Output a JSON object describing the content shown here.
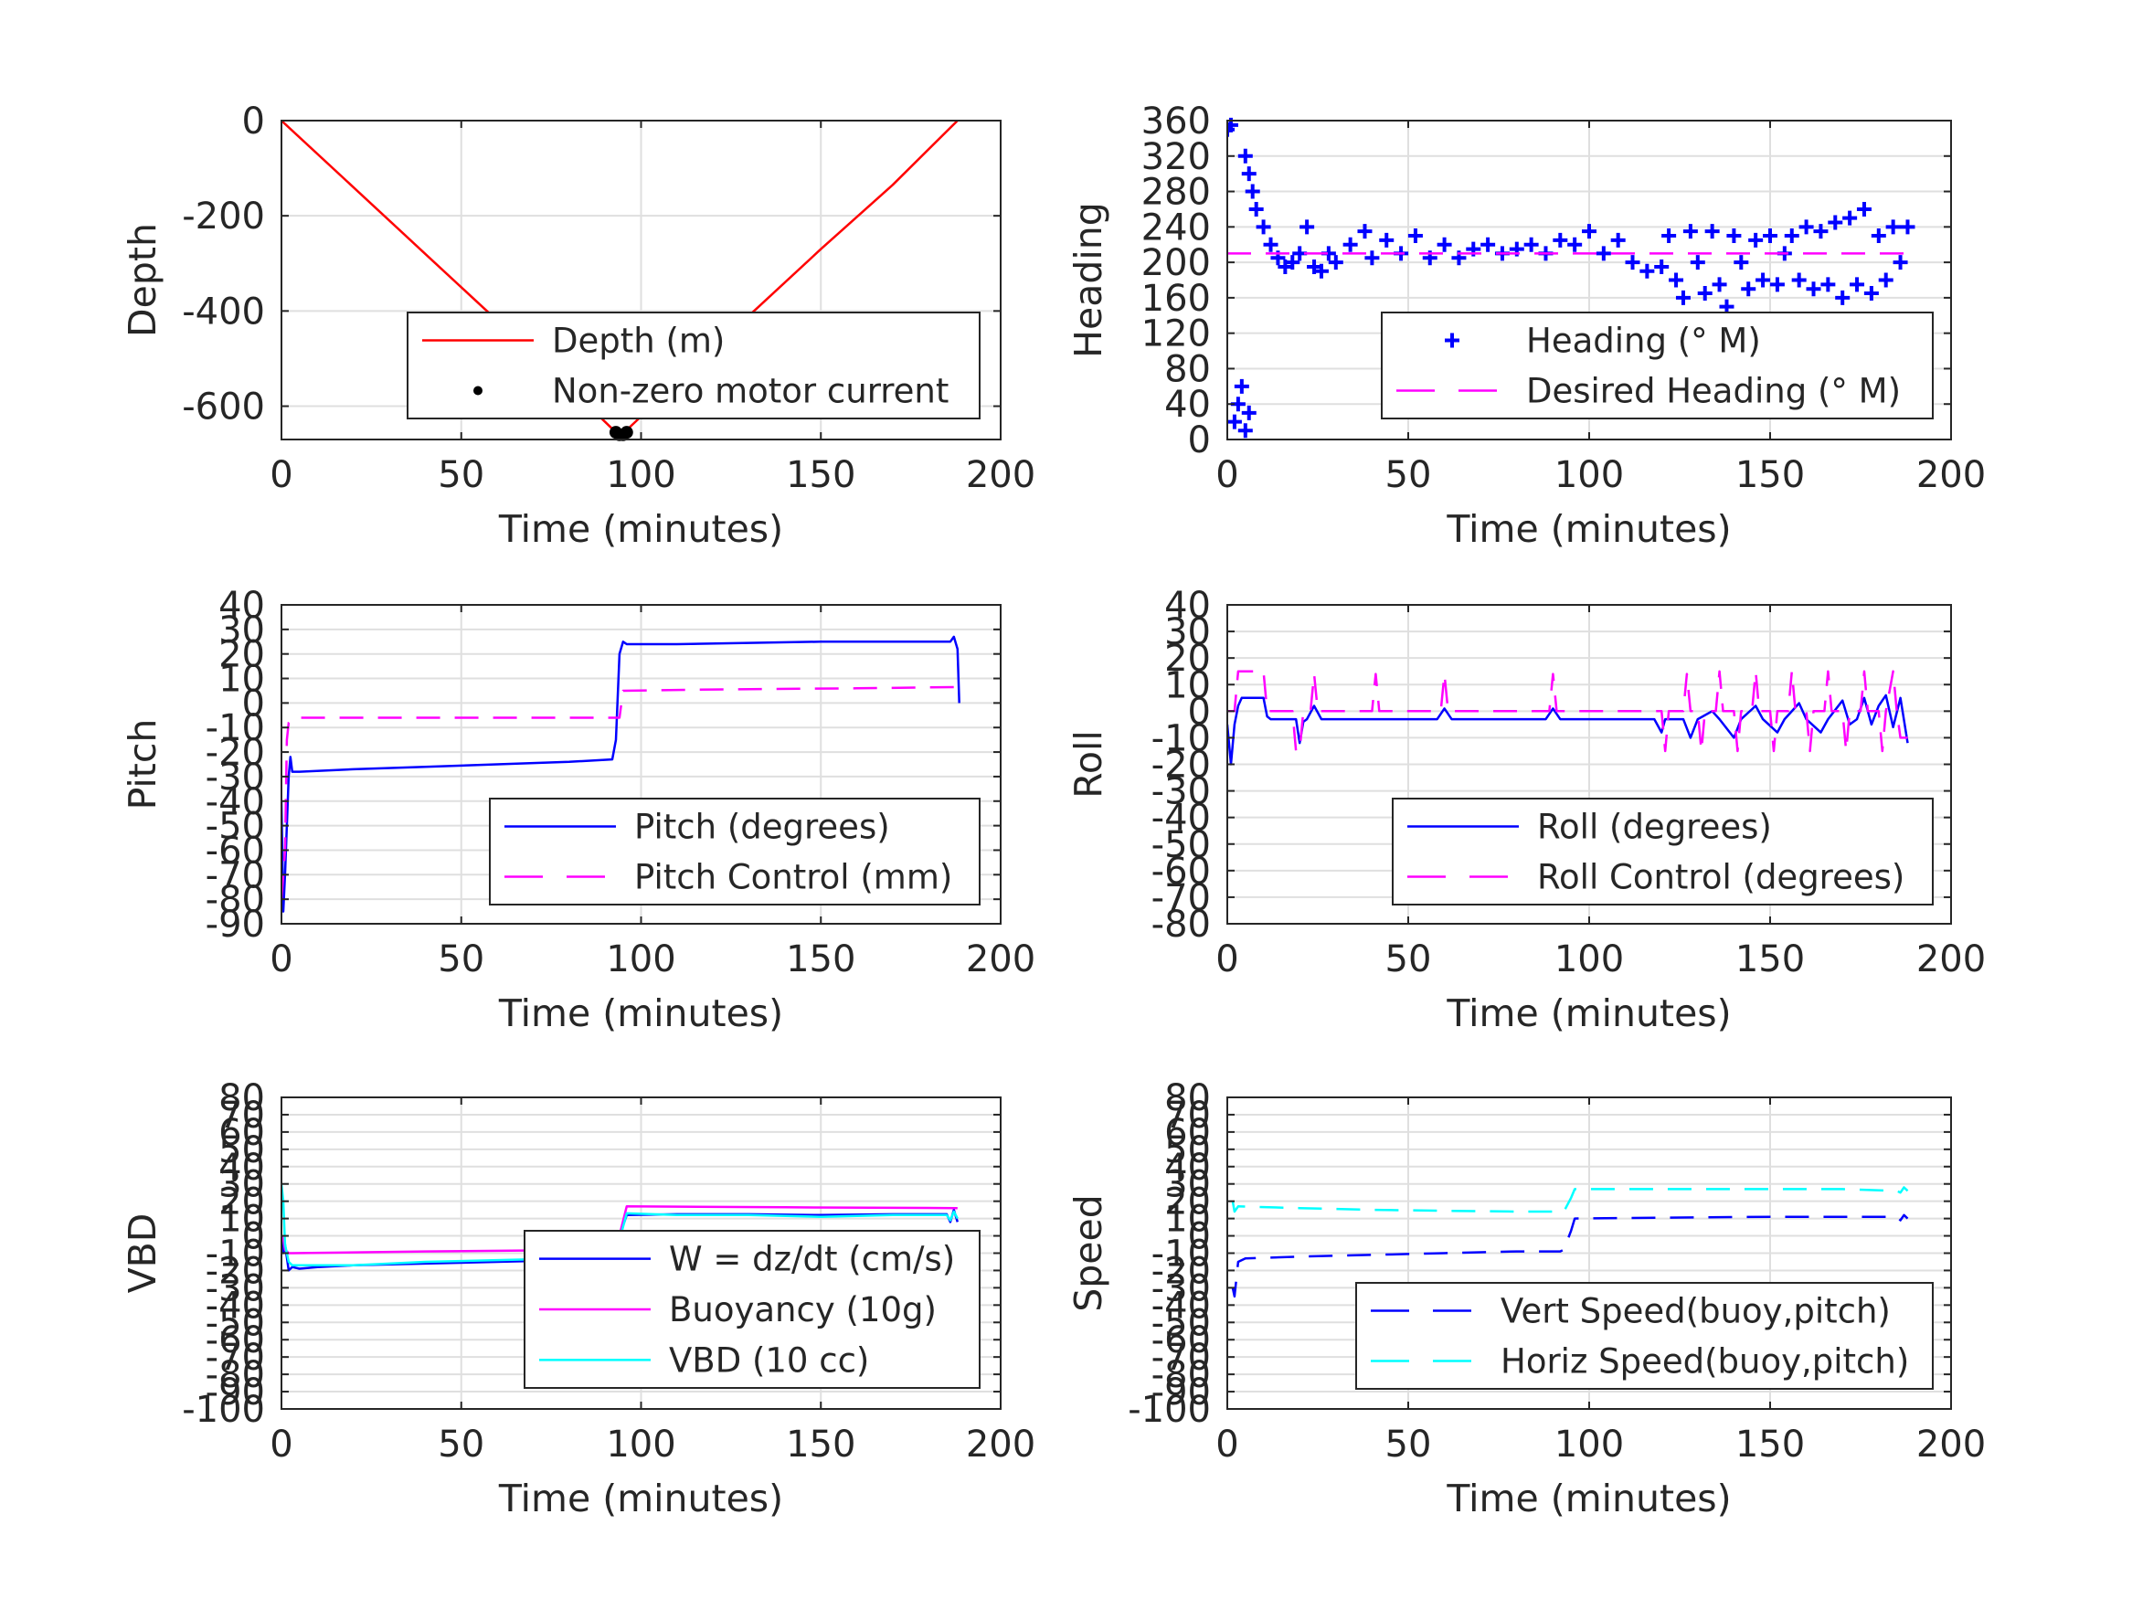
{
  "chart_data": [
    {
      "id": "depth",
      "type": "line",
      "xlabel": "Time (minutes)",
      "ylabel": "Depth",
      "xlim": [
        0,
        200
      ],
      "ylim": [
        -670,
        0
      ],
      "xticks": [
        0,
        50,
        100,
        150,
        200
      ],
      "yticks": [
        -600,
        -400,
        -200,
        0
      ],
      "xtick_labels": [
        "0",
        "50",
        "100",
        "150",
        "200"
      ],
      "ytick_labels": [
        "-600",
        "-400",
        "-200",
        "0"
      ],
      "grid": true,
      "legend": "bottom-right",
      "series": [
        {
          "name": "Depth (m)",
          "color": "#ff0000",
          "style": "solid",
          "x": [
            0,
            20,
            40,
            60,
            80,
            93,
            96,
            110,
            130,
            150,
            170,
            188
          ],
          "y": [
            0,
            -140,
            -280,
            -420,
            -560,
            -655,
            -650,
            -550,
            -410,
            -270,
            -135,
            0
          ]
        },
        {
          "name": "Non-zero motor current",
          "color": "#000000",
          "style": "dot",
          "x": [
            93,
            94,
            95,
            96
          ],
          "y": [
            -655,
            -660,
            -660,
            -655
          ]
        }
      ]
    },
    {
      "id": "heading",
      "type": "scatter",
      "xlabel": "Time (minutes)",
      "ylabel": "Heading",
      "xlim": [
        0,
        200
      ],
      "ylim": [
        0,
        360
      ],
      "xticks": [
        0,
        50,
        100,
        150,
        200
      ],
      "yticks": [
        0,
        40,
        80,
        120,
        160,
        200,
        240,
        280,
        320,
        360
      ],
      "xtick_labels": [
        "0",
        "50",
        "100",
        "150",
        "200"
      ],
      "ytick_labels": [
        "0",
        "40",
        "80",
        "120",
        "160",
        "200",
        "240",
        "280",
        "320",
        "360"
      ],
      "grid": true,
      "legend": "bottom-right",
      "series": [
        {
          "name": "Heading (° M)",
          "color": "#0000ff",
          "style": "plus",
          "x": [
            0,
            1,
            2,
            3,
            4,
            5,
            6,
            5,
            6,
            7,
            8,
            10,
            12,
            14,
            16,
            18,
            20,
            22,
            24,
            26,
            28,
            30,
            34,
            38,
            40,
            44,
            48,
            52,
            56,
            60,
            64,
            68,
            72,
            76,
            80,
            84,
            88,
            92,
            96,
            100,
            104,
            108,
            112,
            116,
            120,
            122,
            124,
            126,
            128,
            130,
            132,
            134,
            136,
            138,
            140,
            142,
            144,
            146,
            148,
            150,
            152,
            154,
            156,
            158,
            160,
            162,
            164,
            166,
            168,
            170,
            172,
            174,
            176,
            178,
            180,
            182,
            184,
            186,
            188
          ],
          "y": [
            350,
            355,
            20,
            40,
            60,
            10,
            30,
            320,
            300,
            280,
            260,
            240,
            220,
            205,
            195,
            200,
            210,
            240,
            195,
            190,
            210,
            200,
            220,
            235,
            205,
            225,
            210,
            230,
            205,
            220,
            205,
            215,
            220,
            210,
            215,
            220,
            210,
            225,
            220,
            235,
            210,
            225,
            200,
            190,
            195,
            230,
            180,
            160,
            235,
            200,
            165,
            235,
            175,
            150,
            230,
            200,
            170,
            225,
            180,
            230,
            175,
            210,
            230,
            180,
            240,
            170,
            235,
            175,
            245,
            160,
            250,
            175,
            260,
            165,
            230,
            180,
            240,
            200,
            240
          ]
        },
        {
          "name": "Desired Heading (° M)",
          "color": "#ff00ff",
          "style": "dash",
          "x": [
            0,
            188
          ],
          "y": [
            210,
            210
          ]
        }
      ]
    },
    {
      "id": "pitch",
      "type": "line",
      "xlabel": "Time (minutes)",
      "ylabel": "Pitch",
      "xlim": [
        0,
        200
      ],
      "ylim": [
        -90,
        40
      ],
      "xticks": [
        0,
        50,
        100,
        150,
        200
      ],
      "yticks": [
        -90,
        -80,
        -70,
        -60,
        -50,
        -40,
        -30,
        -20,
        -10,
        0,
        10,
        20,
        30,
        40
      ],
      "xtick_labels": [
        "0",
        "50",
        "100",
        "150",
        "200"
      ],
      "ytick_labels": [
        "-90",
        "-80",
        "-70",
        "-60",
        "-50",
        "-40",
        "-30",
        "-20",
        "-10",
        "0",
        "10",
        "20",
        "30",
        "40"
      ],
      "grid": true,
      "legend": "bottom-right",
      "series": [
        {
          "name": "Pitch (degrees)",
          "color": "#0000ff",
          "style": "solid",
          "x": [
            0,
            0.5,
            1,
            1.5,
            2,
            2.5,
            3,
            5,
            20,
            40,
            60,
            80,
            92,
            93,
            94,
            95,
            96,
            110,
            130,
            150,
            170,
            186,
            187,
            188,
            188.5
          ],
          "y": [
            -40,
            -85,
            -70,
            -50,
            -30,
            -22,
            -28,
            -28,
            -27,
            -26,
            -25,
            -24,
            -23,
            -15,
            20,
            25,
            24,
            24,
            24.5,
            25,
            25,
            25,
            27,
            22,
            0
          ]
        },
        {
          "name": "Pitch Control (mm)",
          "color": "#ff00ff",
          "style": "dash",
          "x": [
            0,
            1,
            1.5,
            2,
            3,
            60,
            92,
            94,
            95,
            120,
            160,
            188
          ],
          "y": [
            -80,
            -60,
            -15,
            -8,
            -6,
            -6,
            -6,
            -6,
            5,
            5.5,
            6,
            6.5
          ]
        }
      ]
    },
    {
      "id": "roll",
      "type": "line",
      "xlabel": "Time (minutes)",
      "ylabel": "Roll",
      "xlim": [
        0,
        200
      ],
      "ylim": [
        -80,
        40
      ],
      "xticks": [
        0,
        50,
        100,
        150,
        200
      ],
      "yticks": [
        -80,
        -70,
        -60,
        -50,
        -40,
        -30,
        -20,
        -10,
        0,
        10,
        20,
        30,
        40
      ],
      "xtick_labels": [
        "0",
        "50",
        "100",
        "150",
        "200"
      ],
      "ytick_labels": [
        "-80",
        "-70",
        "-60",
        "-50",
        "-40",
        "-30",
        "-20",
        "-10",
        "0",
        "10",
        "20",
        "30",
        "40"
      ],
      "grid": true,
      "legend": "bottom-right",
      "series": [
        {
          "name": "Roll (degrees)",
          "color": "#0000ff",
          "style": "solid",
          "x": [
            0,
            1,
            2,
            3,
            4,
            5,
            10,
            11,
            12,
            19,
            20,
            21,
            22,
            24,
            26,
            40,
            42,
            58,
            60,
            62,
            88,
            90,
            92,
            116,
            118,
            120,
            121,
            122,
            126,
            128,
            130,
            134,
            136,
            140,
            142,
            146,
            148,
            152,
            154,
            158,
            160,
            164,
            166,
            170,
            172,
            174,
            176,
            178,
            180,
            182,
            184,
            186,
            188
          ],
          "y": [
            -5,
            -20,
            -5,
            2,
            5,
            5,
            5,
            -2,
            -3,
            -3,
            -12,
            -4,
            -3,
            2,
            -3,
            -3,
            -3,
            -3,
            1,
            -3,
            -3,
            1,
            -3,
            -3,
            -3,
            -8,
            -3,
            -3,
            -3,
            -10,
            -3,
            0,
            -3,
            -10,
            -3,
            2,
            -3,
            -8,
            -3,
            3,
            -3,
            -8,
            -3,
            4,
            -5,
            -3,
            5,
            -5,
            2,
            6,
            -6,
            5,
            -12
          ]
        },
        {
          "name": "Roll Control (degrees)",
          "color": "#ff00ff",
          "style": "dash",
          "x": [
            0,
            2,
            3,
            10,
            11,
            18,
            19,
            20,
            21,
            23,
            24,
            25,
            40,
            41,
            42,
            59,
            60,
            61,
            89,
            90,
            91,
            120,
            121,
            122,
            126,
            127,
            128,
            130,
            131,
            132,
            135,
            136,
            137,
            140,
            141,
            142,
            145,
            146,
            147,
            150,
            151,
            152,
            155,
            156,
            157,
            160,
            161,
            162,
            165,
            166,
            167,
            170,
            171,
            172,
            175,
            176,
            177,
            180,
            181,
            182,
            184,
            185,
            186,
            188
          ],
          "y": [
            0,
            0,
            15,
            15,
            0,
            0,
            -15,
            -15,
            0,
            0,
            14,
            0,
            0,
            14,
            0,
            0,
            14,
            0,
            0,
            14,
            0,
            0,
            -15,
            0,
            0,
            14,
            0,
            0,
            -15,
            0,
            0,
            15,
            0,
            0,
            -15,
            0,
            0,
            15,
            0,
            0,
            -15,
            0,
            0,
            15,
            0,
            0,
            -15,
            0,
            0,
            15,
            0,
            0,
            -15,
            0,
            0,
            15,
            0,
            0,
            -15,
            0,
            15,
            0,
            -10,
            -10
          ]
        }
      ]
    },
    {
      "id": "vbd",
      "type": "line",
      "xlabel": "Time (minutes)",
      "ylabel": "VBD",
      "xlim": [
        0,
        200
      ],
      "ylim": [
        -100,
        80
      ],
      "xticks": [
        0,
        50,
        100,
        150,
        200
      ],
      "yticks": [
        -100,
        -90,
        -80,
        -70,
        -60,
        -50,
        -40,
        -30,
        -20,
        -10,
        0,
        10,
        20,
        30,
        40,
        50,
        60,
        70,
        80
      ],
      "xtick_labels": [
        "0",
        "50",
        "100",
        "150",
        "200"
      ],
      "ytick_labels": [
        "-100",
        "-90",
        "-80",
        "-70",
        "-60",
        "-50",
        "-40",
        "-30",
        "-20",
        "-10",
        "0",
        "10",
        "20",
        "30",
        "40",
        "50",
        "60",
        "70",
        "80"
      ],
      "grid": true,
      "legend": "bottom-right",
      "series": [
        {
          "name": "W = dz/dt (cm/s)",
          "color": "#0000ff",
          "style": "solid",
          "x": [
            0,
            0.5,
            1,
            2,
            3,
            5,
            10,
            20,
            40,
            60,
            80,
            92,
            94,
            96,
            110,
            130,
            150,
            170,
            185,
            186,
            187,
            188
          ],
          "y": [
            0,
            -10,
            -5,
            -20,
            -18,
            -19,
            -18,
            -17,
            -16,
            -15,
            -14,
            -13,
            0,
            12,
            12.5,
            12.5,
            12,
            12.5,
            12.5,
            8,
            15,
            8
          ]
        },
        {
          "name": "Buoyancy (10g)",
          "color": "#ff00ff",
          "style": "solid",
          "x": [
            0,
            0.5,
            1,
            2,
            3,
            40,
            92,
            93,
            96,
            140,
            188
          ],
          "y": [
            0,
            -2,
            -8,
            -10,
            -10,
            -9,
            -8,
            -8,
            17,
            16.5,
            16
          ]
        },
        {
          "name": "VBD (10 cc)",
          "color": "#00ffff",
          "style": "solid",
          "x": [
            0,
            0.5,
            1,
            2,
            3,
            5,
            20,
            40,
            60,
            80,
            92,
            93,
            96,
            110,
            130,
            150,
            170,
            185,
            186,
            187,
            188
          ],
          "y": [
            30,
            20,
            -5,
            -15,
            -17,
            -17,
            -17,
            -15,
            -14,
            -13,
            -12,
            -10,
            13,
            12,
            12,
            11,
            12,
            12,
            9,
            14,
            10
          ]
        }
      ]
    },
    {
      "id": "speed",
      "type": "line",
      "xlabel": "Time (minutes)",
      "ylabel": "Speed",
      "xlim": [
        0,
        200
      ],
      "ylim": [
        -100,
        80
      ],
      "xticks": [
        0,
        50,
        100,
        150,
        200
      ],
      "yticks": [
        -100,
        -90,
        -80,
        -70,
        -60,
        -50,
        -40,
        -30,
        -20,
        -10,
        0,
        10,
        20,
        30,
        40,
        50,
        60,
        70,
        80
      ],
      "xtick_labels": [
        "0",
        "50",
        "100",
        "150",
        "200"
      ],
      "ytick_labels": [
        "-100",
        "-90",
        "-80",
        "-70",
        "-60",
        "-50",
        "-40",
        "-30",
        "-20",
        "-10",
        "0",
        "10",
        "20",
        "30",
        "40",
        "50",
        "60",
        "70",
        "80"
      ],
      "grid": true,
      "legend": "bottom-right",
      "series": [
        {
          "name": "Vert Speed(buoy,pitch)",
          "color": "#0000ff",
          "style": "dash",
          "x": [
            1.5,
            2,
            3,
            5,
            20,
            40,
            60,
            80,
            92,
            93,
            95,
            96,
            120,
            150,
            170,
            185,
            186,
            187,
            188
          ],
          "y": [
            -30,
            -35,
            -15,
            -13,
            -12,
            -11,
            -10,
            -9,
            -9,
            -8,
            3,
            10,
            10.5,
            11,
            11,
            11,
            9,
            12,
            10
          ]
        },
        {
          "name": "Horiz Speed(buoy,pitch)",
          "color": "#00ffff",
          "style": "dash",
          "x": [
            1.5,
            2,
            3,
            20,
            40,
            60,
            80,
            92,
            93,
            95,
            96,
            120,
            150,
            170,
            185,
            186,
            187,
            188
          ],
          "y": [
            20,
            14,
            17,
            16,
            15,
            14.5,
            14,
            14,
            14,
            22,
            27,
            27,
            27,
            27,
            26,
            25,
            28,
            26
          ]
        }
      ]
    }
  ]
}
